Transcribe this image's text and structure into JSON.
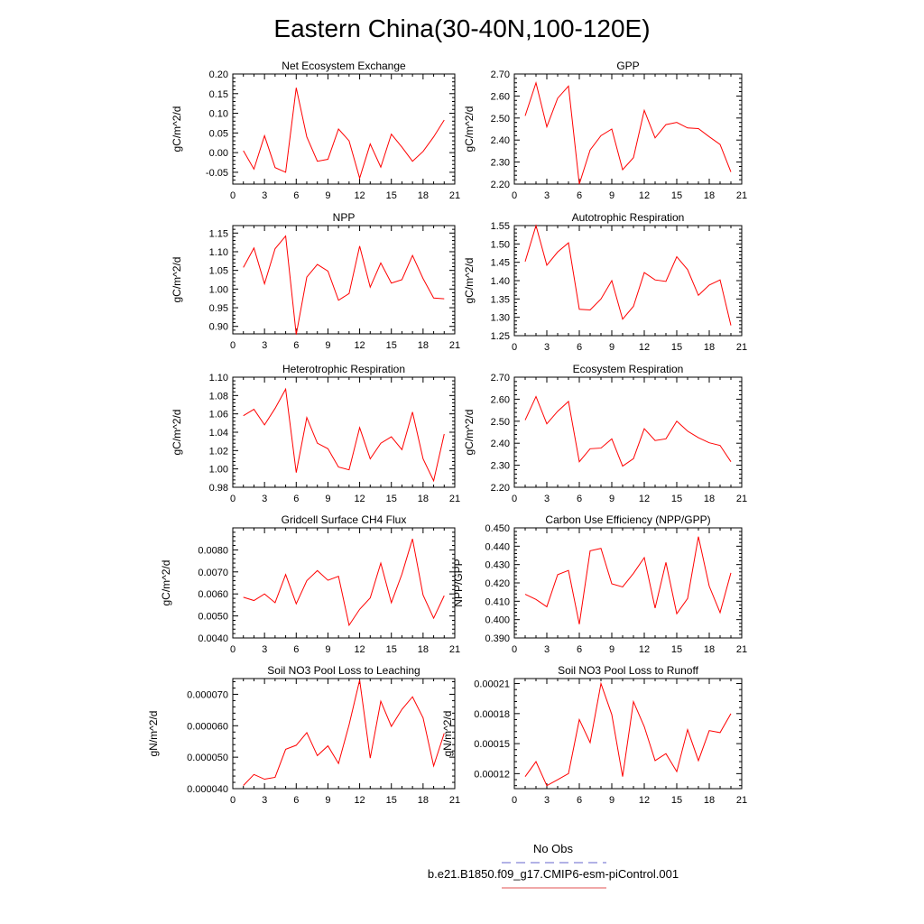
{
  "figure_title": "Eastern China(30-40N,100-120E)",
  "legend": {
    "items": [
      {
        "label": "No Obs",
        "color": "#6666cc",
        "style": "dashed"
      },
      {
        "label": "b.e21.B1850.f09_g17.CMIP6-esm-piControl.001",
        "color": "#e05050",
        "style": "solid"
      }
    ]
  },
  "series_color": "#ff0000",
  "chart_data": [
    {
      "type": "line",
      "title": "Net Ecosystem Exchange",
      "ylabel": "gC/m^2/d",
      "xlim": [
        0,
        21
      ],
      "xticks": [
        "0",
        "3",
        "6",
        "9",
        "12",
        "15",
        "18",
        "21"
      ],
      "ylim": [
        -0.08,
        0.2
      ],
      "yticks": [
        -0.05,
        0,
        0.05,
        0.1,
        0.15,
        0.2
      ],
      "ytick_labels": [
        "-0.05",
        "0.00",
        "0.05",
        "0.10",
        "0.15",
        "0.20"
      ],
      "x": [
        1,
        2,
        3,
        4,
        5,
        6,
        7,
        8,
        9,
        10,
        11,
        12,
        13,
        14,
        15,
        16,
        17,
        18,
        19,
        20
      ],
      "values": [
        0.005,
        -0.042,
        0.043,
        -0.038,
        -0.05,
        0.165,
        0.04,
        -0.022,
        -0.017,
        0.06,
        0.03,
        -0.065,
        0.022,
        -0.037,
        0.047,
        0.014,
        -0.022,
        0.003,
        0.04,
        0.083
      ]
    },
    {
      "type": "line",
      "title": "GPP",
      "ylabel": "gC/m^2/d",
      "xlim": [
        0,
        21
      ],
      "xticks": [
        "0",
        "3",
        "6",
        "9",
        "12",
        "15",
        "18",
        "21"
      ],
      "ylim": [
        2.2,
        2.7
      ],
      "yticks": [
        2.2,
        2.3,
        2.4,
        2.5,
        2.6,
        2.7
      ],
      "ytick_labels": [
        "2.20",
        "2.30",
        "2.40",
        "2.50",
        "2.60",
        "2.70"
      ],
      "x": [
        1,
        2,
        3,
        4,
        5,
        6,
        7,
        8,
        9,
        10,
        11,
        12,
        13,
        14,
        15,
        16,
        17,
        18,
        19,
        20
      ],
      "values": [
        2.51,
        2.66,
        2.46,
        2.59,
        2.645,
        2.2,
        2.355,
        2.42,
        2.45,
        2.265,
        2.32,
        2.535,
        2.41,
        2.47,
        2.48,
        2.455,
        2.452,
        2.415,
        2.38,
        2.255
      ]
    },
    {
      "type": "line",
      "title": "NPP",
      "ylabel": "gC/m^2/d",
      "xlim": [
        0,
        21
      ],
      "xticks": [
        "0",
        "3",
        "6",
        "9",
        "12",
        "15",
        "18",
        "21"
      ],
      "ylim": [
        0.88,
        1.17
      ],
      "yticks": [
        0.9,
        0.95,
        1.0,
        1.05,
        1.1,
        1.15
      ],
      "ytick_labels": [
        "0.90",
        "0.95",
        "1.00",
        "1.05",
        "1.10",
        "1.15"
      ],
      "x": [
        1,
        2,
        3,
        4,
        5,
        6,
        7,
        8,
        9,
        10,
        11,
        12,
        13,
        14,
        15,
        16,
        17,
        18,
        19,
        20
      ],
      "values": [
        1.058,
        1.11,
        1.014,
        1.108,
        1.142,
        0.878,
        1.032,
        1.066,
        1.048,
        0.97,
        0.988,
        1.115,
        1.005,
        1.07,
        1.016,
        1.025,
        1.09,
        1.028,
        0.976,
        0.974
      ]
    },
    {
      "type": "line",
      "title": "Autotrophic Respiration",
      "ylabel": "gC/m^2/d",
      "xlim": [
        0,
        21
      ],
      "xticks": [
        "0",
        "3",
        "6",
        "9",
        "12",
        "15",
        "18",
        "21"
      ],
      "ylim": [
        1.25,
        1.55
      ],
      "yticks": [
        1.25,
        1.3,
        1.35,
        1.4,
        1.45,
        1.5,
        1.55
      ],
      "ytick_labels": [
        "1.25",
        "1.30",
        "1.35",
        "1.40",
        "1.45",
        "1.50",
        "1.55"
      ],
      "x": [
        1,
        2,
        3,
        4,
        5,
        6,
        7,
        8,
        9,
        10,
        11,
        12,
        13,
        14,
        15,
        16,
        17,
        18,
        19,
        20
      ],
      "values": [
        1.452,
        1.55,
        1.442,
        1.478,
        1.503,
        1.322,
        1.32,
        1.35,
        1.4,
        1.295,
        1.33,
        1.422,
        1.402,
        1.398,
        1.465,
        1.43,
        1.36,
        1.388,
        1.402,
        1.278
      ]
    },
    {
      "type": "line",
      "title": "Heterotrophic Respiration",
      "ylabel": "gC/m^2/d",
      "xlim": [
        0,
        21
      ],
      "xticks": [
        "0",
        "3",
        "6",
        "9",
        "12",
        "15",
        "18",
        "21"
      ],
      "ylim": [
        0.98,
        1.1
      ],
      "yticks": [
        0.98,
        1.0,
        1.02,
        1.04,
        1.06,
        1.08,
        1.1
      ],
      "ytick_labels": [
        "0.98",
        "1.00",
        "1.02",
        "1.04",
        "1.06",
        "1.08",
        "1.10"
      ],
      "x": [
        1,
        2,
        3,
        4,
        5,
        6,
        7,
        8,
        9,
        10,
        11,
        12,
        13,
        14,
        15,
        16,
        17,
        18,
        19,
        20
      ],
      "values": [
        1.058,
        1.065,
        1.048,
        1.066,
        1.087,
        0.996,
        1.056,
        1.028,
        1.022,
        1.002,
        0.999,
        1.045,
        1.011,
        1.028,
        1.035,
        1.021,
        1.062,
        1.011,
        0.987,
        1.038
      ]
    },
    {
      "type": "line",
      "title": "Ecosystem Respiration",
      "ylabel": "gC/m^2/d",
      "xlim": [
        0,
        21
      ],
      "xticks": [
        "0",
        "3",
        "6",
        "9",
        "12",
        "15",
        "18",
        "21"
      ],
      "ylim": [
        2.2,
        2.7
      ],
      "yticks": [
        2.2,
        2.3,
        2.4,
        2.5,
        2.6,
        2.7
      ],
      "ytick_labels": [
        "2.20",
        "2.30",
        "2.40",
        "2.50",
        "2.60",
        "2.70"
      ],
      "x": [
        1,
        2,
        3,
        4,
        5,
        6,
        7,
        8,
        9,
        10,
        11,
        12,
        13,
        14,
        15,
        16,
        17,
        18,
        19,
        20
      ],
      "values": [
        2.505,
        2.612,
        2.488,
        2.545,
        2.59,
        2.316,
        2.375,
        2.378,
        2.42,
        2.296,
        2.33,
        2.466,
        2.412,
        2.42,
        2.5,
        2.455,
        2.425,
        2.402,
        2.39,
        2.316
      ]
    },
    {
      "type": "line",
      "title": "Gridcell Surface CH4 Flux",
      "ylabel": "gC/m^2/d",
      "xlim": [
        0,
        21
      ],
      "xticks": [
        "0",
        "3",
        "6",
        "9",
        "12",
        "15",
        "18",
        "21"
      ],
      "ylim": [
        0.004,
        0.009
      ],
      "yticks": [
        0.004,
        0.005,
        0.006,
        0.007,
        0.008
      ],
      "ytick_labels": [
        "0.0040",
        "0.0050",
        "0.0060",
        "0.0070",
        "0.0080"
      ],
      "x": [
        1,
        2,
        3,
        4,
        5,
        6,
        7,
        8,
        9,
        10,
        11,
        12,
        13,
        14,
        15,
        16,
        17,
        18,
        19,
        20
      ],
      "values": [
        0.00585,
        0.0057,
        0.006,
        0.0056,
        0.00688,
        0.00555,
        0.0066,
        0.00706,
        0.00662,
        0.0068,
        0.00458,
        0.0053,
        0.00582,
        0.0074,
        0.0056,
        0.0069,
        0.0085,
        0.00595,
        0.0049,
        0.00592
      ]
    },
    {
      "type": "line",
      "title": "Carbon Use Efficiency (NPP/GPP)",
      "ylabel": "NPP/GPP",
      "xlim": [
        0,
        21
      ],
      "xticks": [
        "0",
        "3",
        "6",
        "9",
        "12",
        "15",
        "18",
        "21"
      ],
      "ylim": [
        0.39,
        0.45
      ],
      "yticks": [
        0.39,
        0.4,
        0.41,
        0.42,
        0.43,
        0.44,
        0.45
      ],
      "ytick_labels": [
        "0.390",
        "0.400",
        "0.410",
        "0.420",
        "0.430",
        "0.440",
        "0.450"
      ],
      "x": [
        1,
        2,
        3,
        4,
        5,
        6,
        7,
        8,
        9,
        10,
        11,
        12,
        13,
        14,
        15,
        16,
        17,
        18,
        19,
        20
      ],
      "values": [
        0.4138,
        0.411,
        0.407,
        0.4245,
        0.4268,
        0.3975,
        0.4375,
        0.4388,
        0.4195,
        0.4178,
        0.4252,
        0.4338,
        0.4063,
        0.4312,
        0.4032,
        0.4115,
        0.4452,
        0.4182,
        0.4038,
        0.4255
      ]
    },
    {
      "type": "line",
      "title": "Soil NO3 Pool Loss to Leaching",
      "ylabel": "gN/m^2/d",
      "xlim": [
        0,
        21
      ],
      "xticks": [
        "0",
        "3",
        "6",
        "9",
        "12",
        "15",
        "18",
        "21"
      ],
      "ylim": [
        4e-05,
        7.5e-05
      ],
      "yticks": [
        4e-05,
        5e-05,
        6e-05,
        7e-05
      ],
      "ytick_labels": [
        "0.000040",
        "0.000050",
        "0.000060",
        "0.000070"
      ],
      "x": [
        1,
        2,
        3,
        4,
        5,
        6,
        7,
        8,
        9,
        10,
        11,
        12,
        13,
        14,
        15,
        16,
        17,
        18,
        19,
        20
      ],
      "values": [
        4.1e-05,
        4.45e-05,
        4.3e-05,
        4.36e-05,
        5.25e-05,
        5.38e-05,
        5.78e-05,
        5.05e-05,
        5.36e-05,
        4.8e-05,
        6.03e-05,
        7.45e-05,
        4.97e-05,
        6.78e-05,
        5.98e-05,
        6.52e-05,
        6.92e-05,
        6.25e-05,
        4.72e-05,
        5.76e-05
      ]
    },
    {
      "type": "line",
      "title": "Soil NO3 Pool Loss to Runoff",
      "ylabel": "gN/m^2/d",
      "xlim": [
        0,
        21
      ],
      "xticks": [
        "0",
        "3",
        "6",
        "9",
        "12",
        "15",
        "18",
        "21"
      ],
      "ylim": [
        0.000105,
        0.000215
      ],
      "yticks": [
        0.00012,
        0.00015,
        0.00018,
        0.00021
      ],
      "ytick_labels": [
        "0.00012",
        "0.00015",
        "0.00018",
        "0.00021"
      ],
      "x": [
        1,
        2,
        3,
        4,
        5,
        6,
        7,
        8,
        9,
        10,
        11,
        12,
        13,
        14,
        15,
        16,
        17,
        18,
        19,
        20
      ],
      "values": [
        0.000117,
        0.000132,
        0.000108,
        0.000114,
        0.00012,
        0.000174,
        0.000151,
        0.00021,
        0.000179,
        0.000117,
        0.000192,
        0.000167,
        0.000133,
        0.00014,
        0.000122,
        0.000164,
        0.000133,
        0.000163,
        0.000161,
        0.00018
      ]
    }
  ]
}
